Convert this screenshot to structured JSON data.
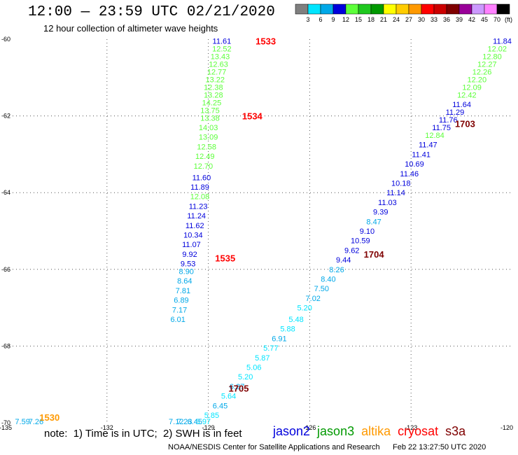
{
  "header": {
    "title": "12:00 — 23:59 UTC 02/21/2020",
    "subtitle": "12 hour collection of altimeter wave heights"
  },
  "colorbar": {
    "unit": "(ft)",
    "levels": [
      {
        "label": "3",
        "color": "#7f7f7f"
      },
      {
        "label": "6",
        "color": "#00e5ff"
      },
      {
        "label": "9",
        "color": "#00a8e8"
      },
      {
        "label": "12",
        "color": "#0000dc"
      },
      {
        "label": "15",
        "color": "#5cff3a"
      },
      {
        "label": "18",
        "color": "#1fc81f"
      },
      {
        "label": "21",
        "color": "#009900"
      },
      {
        "label": "24",
        "color": "#ffff00"
      },
      {
        "label": "27",
        "color": "#ffcc00"
      },
      {
        "label": "30",
        "color": "#ff9900"
      },
      {
        "label": "33",
        "color": "#ff0000"
      },
      {
        "label": "36",
        "color": "#cc0000"
      },
      {
        "label": "39",
        "color": "#7f0000"
      },
      {
        "label": "42",
        "color": "#990099"
      },
      {
        "label": "45",
        "color": "#cc99ff"
      },
      {
        "label": "70",
        "color": "#ff80ff"
      },
      {
        "label": "",
        "color": "#000000"
      }
    ]
  },
  "footer": {
    "note": "note:  1) Time is in UTC;  2) SWH is in feet",
    "credit": "NOAA/NESDIS Center for Satellite Applications and Research      Feb 22 13:27:50 UTC 2020",
    "satellites": [
      {
        "name": "jason2",
        "color": "#0000dc"
      },
      {
        "name": "jason3",
        "color": "#009900"
      },
      {
        "name": "altika",
        "color": "#ff9900"
      },
      {
        "name": "cryosat",
        "color": "#ff0000"
      },
      {
        "name": "s3a",
        "color": "#7f0000"
      }
    ]
  },
  "chart_data": {
    "type": "scatter",
    "title": "12:00 — 23:59 UTC 02/21/2020",
    "subtitle": "12 hour collection of altimeter wave heights",
    "xlim": [
      -135,
      -120
    ],
    "ylim": [
      -70,
      -60
    ],
    "x_ticks": [
      "-135",
      "-132",
      "-129",
      "-126",
      "-123",
      "-120"
    ],
    "y_ticks": [
      "-60",
      "-62",
      "-64",
      "-66",
      "-68",
      "-70"
    ],
    "grid": true,
    "time_labels": [
      {
        "text": "1533",
        "lon": -127.6,
        "lat": -60.05,
        "color": "#ff0000"
      },
      {
        "text": "1534",
        "lon": -128.0,
        "lat": -62.0,
        "color": "#ff0000"
      },
      {
        "text": "1535",
        "lon": -128.8,
        "lat": -65.7,
        "color": "#ff0000"
      },
      {
        "text": "1530",
        "lon": -134.0,
        "lat": -69.85,
        "color": "#ff9900"
      },
      {
        "text": "1703",
        "lon": -121.7,
        "lat": -62.2,
        "color": "#7f0000"
      },
      {
        "text": "1704",
        "lon": -124.4,
        "lat": -65.6,
        "color": "#7f0000"
      },
      {
        "text": "1705",
        "lon": -128.4,
        "lat": -69.1,
        "color": "#7f0000"
      }
    ],
    "series": [
      {
        "name": "cryosat track",
        "points": [
          {
            "lon": -128.6,
            "lat": -60.05,
            "v": "11.61",
            "c": "#0000dc"
          },
          {
            "lon": -128.6,
            "lat": -60.25,
            "v": "12.52",
            "c": "#5cff3a"
          },
          {
            "lon": -128.65,
            "lat": -60.45,
            "v": "13.43",
            "c": "#5cff3a"
          },
          {
            "lon": -128.7,
            "lat": -60.65,
            "v": "12.63",
            "c": "#5cff3a"
          },
          {
            "lon": -128.75,
            "lat": -60.85,
            "v": "12.77",
            "c": "#5cff3a"
          },
          {
            "lon": -128.8,
            "lat": -61.05,
            "v": "13.22",
            "c": "#5cff3a"
          },
          {
            "lon": -128.85,
            "lat": -61.25,
            "v": "12.38",
            "c": "#5cff3a"
          },
          {
            "lon": -128.85,
            "lat": -61.45,
            "v": "13.28",
            "c": "#5cff3a"
          },
          {
            "lon": -128.9,
            "lat": -61.65,
            "v": "14.25",
            "c": "#5cff3a"
          },
          {
            "lon": -128.95,
            "lat": -61.85,
            "v": "13.75",
            "c": "#5cff3a"
          },
          {
            "lon": -128.95,
            "lat": -62.05,
            "v": "13.38",
            "c": "#5cff3a"
          },
          {
            "lon": -129.0,
            "lat": -62.3,
            "v": "14.03",
            "c": "#5cff3a"
          },
          {
            "lon": -129.0,
            "lat": -62.55,
            "v": "13.09",
            "c": "#5cff3a"
          },
          {
            "lon": -129.05,
            "lat": -62.8,
            "v": "12.58",
            "c": "#5cff3a"
          },
          {
            "lon": -129.1,
            "lat": -63.05,
            "v": "12.49",
            "c": "#5cff3a"
          },
          {
            "lon": -129.15,
            "lat": -63.3,
            "v": "12.70",
            "c": "#5cff3a"
          },
          {
            "lon": -129.2,
            "lat": -63.6,
            "v": "11.60",
            "c": "#0000dc"
          },
          {
            "lon": -129.25,
            "lat": -63.85,
            "v": "11.89",
            "c": "#0000dc"
          },
          {
            "lon": -129.25,
            "lat": -64.1,
            "v": "12.08",
            "c": "#5cff3a"
          },
          {
            "lon": -129.3,
            "lat": -64.35,
            "v": "11.23",
            "c": "#0000dc"
          },
          {
            "lon": -129.35,
            "lat": -64.6,
            "v": "11.24",
            "c": "#0000dc"
          },
          {
            "lon": -129.4,
            "lat": -64.85,
            "v": "11.62",
            "c": "#0000dc"
          },
          {
            "lon": -129.45,
            "lat": -65.1,
            "v": "10.34",
            "c": "#0000dc"
          },
          {
            "lon": -129.5,
            "lat": -65.35,
            "v": "11.07",
            "c": "#0000dc"
          },
          {
            "lon": -129.55,
            "lat": -65.6,
            "v": "9.92",
            "c": "#0000dc"
          },
          {
            "lon": -129.6,
            "lat": -65.85,
            "v": "9.53",
            "c": "#0000dc"
          },
          {
            "lon": -129.65,
            "lat": -66.05,
            "v": "8.90",
            "c": "#00a8e8"
          },
          {
            "lon": -129.7,
            "lat": -66.3,
            "v": "8.64",
            "c": "#00a8e8"
          },
          {
            "lon": -129.75,
            "lat": -66.55,
            "v": "7.81",
            "c": "#00a8e8"
          },
          {
            "lon": -129.8,
            "lat": -66.8,
            "v": "6.89",
            "c": "#00a8e8"
          },
          {
            "lon": -129.85,
            "lat": -67.05,
            "v": "7.17",
            "c": "#00a8e8"
          },
          {
            "lon": -129.9,
            "lat": -67.3,
            "v": "6.01",
            "c": "#00a8e8"
          }
        ]
      },
      {
        "name": "s3a track",
        "points": [
          {
            "lon": -120.3,
            "lat": -60.05,
            "v": "11.84",
            "c": "#0000dc"
          },
          {
            "lon": -120.45,
            "lat": -60.25,
            "v": "12.02",
            "c": "#5cff3a"
          },
          {
            "lon": -120.6,
            "lat": -60.45,
            "v": "12.80",
            "c": "#5cff3a"
          },
          {
            "lon": -120.75,
            "lat": -60.65,
            "v": "12.27",
            "c": "#5cff3a"
          },
          {
            "lon": -120.9,
            "lat": -60.85,
            "v": "12.26",
            "c": "#5cff3a"
          },
          {
            "lon": -121.05,
            "lat": -61.05,
            "v": "12.20",
            "c": "#5cff3a"
          },
          {
            "lon": -121.2,
            "lat": -61.25,
            "v": "12.09",
            "c": "#5cff3a"
          },
          {
            "lon": -121.35,
            "lat": -61.45,
            "v": "12.42",
            "c": "#5cff3a"
          },
          {
            "lon": -121.5,
            "lat": -61.7,
            "v": "11.64",
            "c": "#0000dc"
          },
          {
            "lon": -121.7,
            "lat": -61.9,
            "v": "11.29",
            "c": "#0000dc"
          },
          {
            "lon": -121.9,
            "lat": -62.1,
            "v": "11.76",
            "c": "#0000dc"
          },
          {
            "lon": -122.1,
            "lat": -62.3,
            "v": "11.75",
            "c": "#0000dc"
          },
          {
            "lon": -122.3,
            "lat": -62.5,
            "v": "12.84",
            "c": "#5cff3a"
          },
          {
            "lon": -122.5,
            "lat": -62.75,
            "v": "11.47",
            "c": "#0000dc"
          },
          {
            "lon": -122.7,
            "lat": -63.0,
            "v": "11.41",
            "c": "#0000dc"
          },
          {
            "lon": -122.9,
            "lat": -63.25,
            "v": "10.69",
            "c": "#0000dc"
          },
          {
            "lon": -123.05,
            "lat": -63.5,
            "v": "11.46",
            "c": "#0000dc"
          },
          {
            "lon": -123.3,
            "lat": -63.75,
            "v": "10.18",
            "c": "#0000dc"
          },
          {
            "lon": -123.45,
            "lat": -64.0,
            "v": "11.14",
            "c": "#0000dc"
          },
          {
            "lon": -123.7,
            "lat": -64.25,
            "v": "11.03",
            "c": "#0000dc"
          },
          {
            "lon": -123.9,
            "lat": -64.5,
            "v": "9.39",
            "c": "#0000dc"
          },
          {
            "lon": -124.1,
            "lat": -64.75,
            "v": "8.47",
            "c": "#00a8e8"
          },
          {
            "lon": -124.3,
            "lat": -65.0,
            "v": "9.10",
            "c": "#0000dc"
          },
          {
            "lon": -124.5,
            "lat": -65.25,
            "v": "10.59",
            "c": "#0000dc"
          },
          {
            "lon": -124.75,
            "lat": -65.5,
            "v": "9.62",
            "c": "#0000dc"
          },
          {
            "lon": -125.0,
            "lat": -65.75,
            "v": "9.44",
            "c": "#0000dc"
          },
          {
            "lon": -125.2,
            "lat": -66.0,
            "v": "8.26",
            "c": "#00a8e8"
          },
          {
            "lon": -125.45,
            "lat": -66.25,
            "v": "8.40",
            "c": "#00a8e8"
          },
          {
            "lon": -125.65,
            "lat": -66.5,
            "v": "7.50",
            "c": "#00a8e8"
          },
          {
            "lon": -125.9,
            "lat": -66.75,
            "v": "7.02",
            "c": "#00a8e8"
          },
          {
            "lon": -126.15,
            "lat": -67.0,
            "v": "5.20",
            "c": "#00e5ff"
          },
          {
            "lon": -126.4,
            "lat": -67.3,
            "v": "5.48",
            "c": "#00e5ff"
          },
          {
            "lon": -126.65,
            "lat": -67.55,
            "v": "5.88",
            "c": "#00e5ff"
          },
          {
            "lon": -126.9,
            "lat": -67.8,
            "v": "6.91",
            "c": "#00a8e8"
          },
          {
            "lon": -127.15,
            "lat": -68.05,
            "v": "5.77",
            "c": "#00e5ff"
          },
          {
            "lon": -127.4,
            "lat": -68.3,
            "v": "5.87",
            "c": "#00e5ff"
          },
          {
            "lon": -127.65,
            "lat": -68.55,
            "v": "5.06",
            "c": "#00e5ff"
          },
          {
            "lon": -127.9,
            "lat": -68.8,
            "v": "5.20",
            "c": "#00e5ff"
          },
          {
            "lon": -128.15,
            "lat": -69.05,
            "v": "6.27",
            "c": "#00a8e8"
          },
          {
            "lon": -128.4,
            "lat": -69.3,
            "v": "5.64",
            "c": "#00e5ff"
          },
          {
            "lon": -128.65,
            "lat": -69.55,
            "v": "6.45",
            "c": "#00a8e8"
          },
          {
            "lon": -128.9,
            "lat": -69.8,
            "v": "5.85",
            "c": "#00e5ff"
          },
          {
            "lon": -129.15,
            "lat": -70.05,
            "v": "5.97",
            "c": "#00e5ff"
          },
          {
            "lon": -129.4,
            "lat": -70.3,
            "v": "6.45",
            "c": "#00a8e8"
          },
          {
            "lon": -129.7,
            "lat": -70.55,
            "v": "7.23",
            "c": "#00a8e8"
          },
          {
            "lon": -129.95,
            "lat": -70.8,
            "v": "7.12",
            "c": "#00a8e8"
          }
        ]
      },
      {
        "name": "altika track",
        "points": [
          {
            "lon": -134.5,
            "lat": -70.35,
            "v": "7.59",
            "c": "#00a8e8"
          },
          {
            "lon": -134.1,
            "lat": -70.55,
            "v": "7.26",
            "c": "#00a8e8"
          }
        ]
      }
    ]
  }
}
